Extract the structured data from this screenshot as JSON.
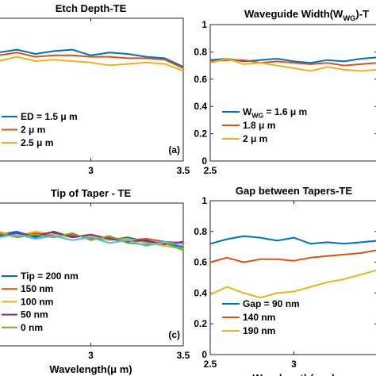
{
  "colors": {
    "blue": "#0072BD",
    "orange": "#D95319",
    "yellow": "#EDB120",
    "purple": "#7E2F8E",
    "green": "#77AC30",
    "cyan": "#4DBEEE"
  },
  "chart_data": [
    {
      "type": "line",
      "panel": "top-left",
      "title": "Etch Depth-TE",
      "xlabel": "",
      "ylabel": "",
      "xlim": [
        2.5,
        3.5
      ],
      "ylim": [
        0,
        1
      ],
      "xticks": [
        "3",
        "3.5"
      ],
      "yticks": [],
      "panel_label": "(a)",
      "legend": "bottom-left",
      "x": [
        2.5,
        2.6,
        2.7,
        2.8,
        2.9,
        3.0,
        3.1,
        3.2,
        3.3,
        3.4,
        3.5
      ],
      "series": [
        {
          "name": "ED = 1.5 μ m",
          "color": "#0072BD",
          "values": [
            0.76,
            0.78,
            0.75,
            0.77,
            0.78,
            0.74,
            0.76,
            0.75,
            0.73,
            0.72,
            0.66
          ]
        },
        {
          "name": "2 μ m",
          "color": "#D95319",
          "values": [
            0.74,
            0.76,
            0.73,
            0.74,
            0.74,
            0.73,
            0.73,
            0.72,
            0.72,
            0.71,
            0.65
          ]
        },
        {
          "name": "2.5 μ m",
          "color": "#EDB120",
          "values": [
            0.7,
            0.73,
            0.7,
            0.71,
            0.7,
            0.69,
            0.67,
            0.68,
            0.69,
            0.68,
            0.63
          ]
        }
      ]
    },
    {
      "type": "line",
      "panel": "top-right",
      "title": "Waveguide Width(W",
      "title_sub": "WG",
      "title_tail": ")-T",
      "xlabel": "",
      "ylabel": "",
      "xlim": [
        2.5,
        3.5
      ],
      "ylim": [
        0,
        1
      ],
      "xticks": [
        "2.5"
      ],
      "yticks": [
        "0",
        "0.2",
        "0.4",
        "0.6",
        "0.8",
        "1"
      ],
      "legend": "bottom-left",
      "x": [
        2.5,
        2.6,
        2.7,
        2.8,
        2.9,
        3.0,
        3.1,
        3.2,
        3.3,
        3.4,
        3.5
      ],
      "series": [
        {
          "name": "W",
          "name_sub": "WG",
          "name_tail": " = 1.6 μ m",
          "color": "#0072BD",
          "values": [
            0.74,
            0.75,
            0.73,
            0.74,
            0.75,
            0.73,
            0.72,
            0.74,
            0.73,
            0.75,
            0.76
          ]
        },
        {
          "name": "1.8 μ m",
          "color": "#D95319",
          "values": [
            0.73,
            0.74,
            0.74,
            0.72,
            0.73,
            0.72,
            0.71,
            0.72,
            0.7,
            0.71,
            0.72
          ]
        },
        {
          "name": "2 μ m",
          "color": "#EDB120",
          "values": [
            0.72,
            0.75,
            0.71,
            0.72,
            0.7,
            0.68,
            0.66,
            0.69,
            0.67,
            0.66,
            0.67
          ]
        }
      ]
    },
    {
      "type": "line",
      "panel": "bottom-left",
      "title": "Tip of Taper - TE",
      "xlabel": "Wavelength(μ m)",
      "ylabel": "",
      "xlim": [
        2.5,
        3.5
      ],
      "ylim": [
        0,
        1
      ],
      "xticks": [
        "3",
        "3.5"
      ],
      "yticks": [],
      "panel_label": "(c)",
      "legend": "bottom-left",
      "x": [
        2.5,
        2.6,
        2.7,
        2.8,
        2.9,
        3.0,
        3.1,
        3.2,
        3.3,
        3.4,
        3.5
      ],
      "series": [
        {
          "name": "Tip = 200 nm",
          "color": "#0072BD",
          "values": [
            0.78,
            0.8,
            0.76,
            0.79,
            0.77,
            0.76,
            0.74,
            0.76,
            0.73,
            0.72,
            0.69
          ]
        },
        {
          "name": "150 nm",
          "color": "#D95319",
          "values": [
            0.79,
            0.78,
            0.79,
            0.77,
            0.78,
            0.75,
            0.76,
            0.74,
            0.75,
            0.73,
            0.72
          ]
        },
        {
          "name": "100 nm",
          "color": "#EDB120",
          "values": [
            0.8,
            0.77,
            0.8,
            0.78,
            0.76,
            0.77,
            0.74,
            0.75,
            0.72,
            0.7,
            0.68
          ]
        },
        {
          "name": "50 nm",
          "color": "#7E2F8E",
          "values": [
            0.77,
            0.79,
            0.77,
            0.8,
            0.76,
            0.78,
            0.75,
            0.73,
            0.74,
            0.71,
            0.73
          ]
        },
        {
          "name": "0 nm",
          "color": "#77AC30",
          "values": [
            0.79,
            0.76,
            0.78,
            0.76,
            0.79,
            0.74,
            0.77,
            0.72,
            0.71,
            0.72,
            0.67
          ]
        },
        {
          "name": "",
          "color": "#4DBEEE",
          "values": [
            0.76,
            0.78,
            0.75,
            0.77,
            0.74,
            0.76,
            0.72,
            0.74,
            0.7,
            0.73,
            0.7
          ]
        }
      ]
    },
    {
      "type": "line",
      "panel": "bottom-right",
      "title": "Gap between Tapers-TE",
      "xlabel": "Wavelength(μ m)",
      "ylabel": "",
      "xlim": [
        2.5,
        3.5
      ],
      "ylim": [
        0,
        1
      ],
      "xticks": [
        "2.5",
        "3"
      ],
      "yticks": [
        "0",
        "0.2",
        "0.4",
        "0.6",
        "0.8",
        "1"
      ],
      "legend": "bottom-left",
      "x": [
        2.5,
        2.6,
        2.7,
        2.8,
        2.9,
        3.0,
        3.1,
        3.2,
        3.3,
        3.4,
        3.5
      ],
      "series": [
        {
          "name": "Gap = 90 nm",
          "color": "#0072BD",
          "values": [
            0.72,
            0.75,
            0.77,
            0.76,
            0.74,
            0.76,
            0.72,
            0.73,
            0.72,
            0.73,
            0.74
          ]
        },
        {
          "name": "140 nm",
          "color": "#D95319",
          "values": [
            0.6,
            0.63,
            0.6,
            0.62,
            0.62,
            0.61,
            0.63,
            0.64,
            0.65,
            0.66,
            0.68
          ]
        },
        {
          "name": "190 nm",
          "color": "#EDB120",
          "values": [
            0.39,
            0.44,
            0.4,
            0.37,
            0.4,
            0.41,
            0.44,
            0.47,
            0.49,
            0.52,
            0.55
          ]
        }
      ]
    }
  ]
}
